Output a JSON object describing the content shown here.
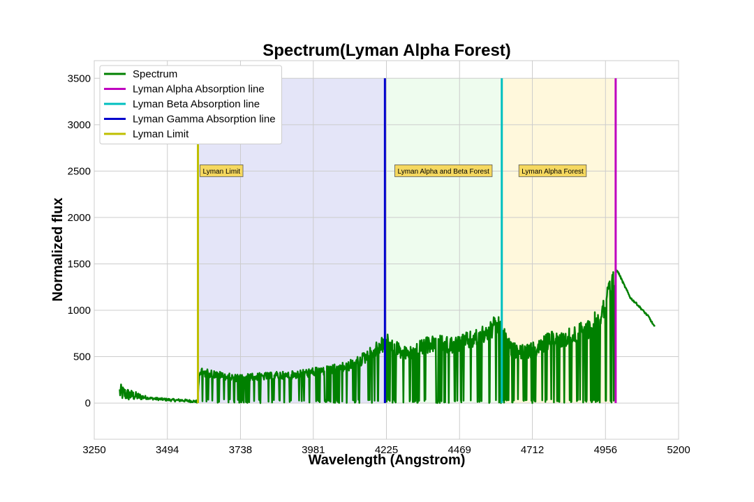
{
  "chart_data": {
    "type": "line",
    "title": "Spectrum(Lyman Alpha Forest)",
    "xlabel": "Wavelength (Angstrom)",
    "ylabel": "Normalized flux",
    "xlim": [
      3250,
      5200
    ],
    "ylim": [
      -390,
      3690
    ],
    "xticks": [
      3250,
      3494,
      3738,
      3981,
      4225,
      4469,
      4712,
      4956,
      5200
    ],
    "yticks": [
      0,
      500,
      1000,
      1500,
      2000,
      2500,
      3000,
      3500
    ],
    "grid": true,
    "legend_position": "top-left",
    "legend": [
      {
        "label": "Spectrum",
        "color": "#008000"
      },
      {
        "label": "Lyman Alpha Absorption line",
        "color": "#bf00bf"
      },
      {
        "label": "Lyman Beta Absorption line",
        "color": "#00bfbf"
      },
      {
        "label": "Lyman Gamma Absorption line",
        "color": "#0000cc"
      },
      {
        "label": "Lyman Limit",
        "color": "#bfbf00"
      }
    ],
    "vertical_lines": [
      {
        "name": "Lyman Limit",
        "x": 3596,
        "y_range": [
          0,
          2800
        ],
        "color": "#bfbf00"
      },
      {
        "name": "Lyman Gamma Absorption line",
        "x": 4220,
        "y_range": [
          0,
          3500
        ],
        "color": "#0000cc"
      },
      {
        "name": "Lyman Beta Absorption line",
        "x": 4610,
        "y_range": [
          0,
          3500
        ],
        "color": "#00bfbf"
      },
      {
        "name": "Lyman Alpha Absorption line",
        "x": 4990,
        "y_range": [
          0,
          3500
        ],
        "color": "#bf00bf"
      }
    ],
    "regions": [
      {
        "x": [
          3596,
          4220
        ],
        "y": [
          0,
          3500
        ],
        "color": "#e4e5f8"
      },
      {
        "x": [
          4220,
          4610
        ],
        "y": [
          0,
          3500
        ],
        "color": "#eefcee"
      },
      {
        "x": [
          4610,
          4990
        ],
        "y": [
          0,
          3500
        ],
        "color": "#fff8dc"
      }
    ],
    "annotations": [
      {
        "text": "Lyman Limit",
        "x": 3603,
        "y": 2500
      },
      {
        "text": "Lyman Alpha and Beta Forest",
        "x": 4253,
        "y": 2500
      },
      {
        "text": "Lyman Alpha Forest",
        "x": 4667,
        "y": 2500
      }
    ],
    "series": [
      {
        "name": "Spectrum",
        "color": "#008000",
        "x": [
          3335,
          3350,
          3365,
          3380,
          3400,
          3420,
          3440,
          3460,
          3480,
          3500,
          3520,
          3540,
          3560,
          3580,
          3595,
          3600,
          3620,
          3640,
          3660,
          3680,
          3700,
          3720,
          3740,
          3760,
          3780,
          3800,
          3820,
          3840,
          3860,
          3880,
          3900,
          3920,
          3940,
          3960,
          3980,
          4000,
          4020,
          4040,
          4060,
          4080,
          4100,
          4120,
          4140,
          4160,
          4180,
          4200,
          4210,
          4230,
          4250,
          4270,
          4290,
          4310,
          4330,
          4350,
          4370,
          4390,
          4410,
          4430,
          4450,
          4470,
          4490,
          4510,
          4530,
          4550,
          4570,
          4590,
          4605,
          4620,
          4640,
          4660,
          4680,
          4700,
          4720,
          4740,
          4760,
          4780,
          4800,
          4820,
          4840,
          4860,
          4880,
          4900,
          4920,
          4940,
          4960,
          4970,
          4980,
          4990,
          5000,
          5020,
          5040,
          5060,
          5080,
          5100,
          5120
        ],
        "y": [
          120,
          100,
          90,
          80,
          70,
          60,
          50,
          45,
          40,
          35,
          30,
          30,
          25,
          20,
          15,
          380,
          370,
          360,
          350,
          330,
          320,
          310,
          310,
          320,
          320,
          330,
          330,
          330,
          340,
          340,
          340,
          350,
          360,
          370,
          380,
          390,
          400,
          410,
          420,
          440,
          460,
          490,
          530,
          580,
          640,
          680,
          720,
          740,
          710,
          640,
          610,
          620,
          660,
          700,
          720,
          730,
          730,
          720,
          720,
          740,
          760,
          780,
          800,
          850,
          900,
          940,
          960,
          800,
          660,
          640,
          630,
          640,
          660,
          700,
          750,
          780,
          790,
          800,
          820,
          850,
          880,
          930,
          1000,
          1100,
          1250,
          1350,
          1420,
          1440,
          1400,
          1260,
          1130,
          1070,
          1000,
          930,
          820
        ]
      }
    ]
  }
}
